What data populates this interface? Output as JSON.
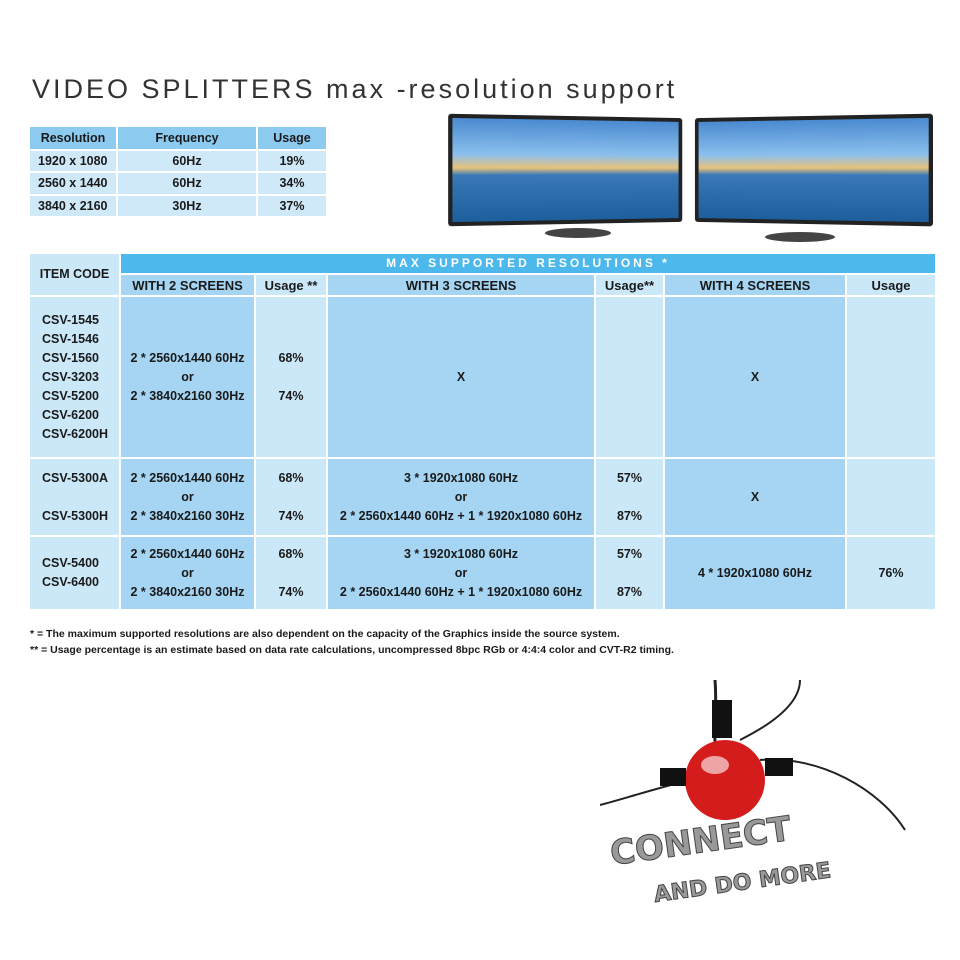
{
  "title": "VIDEO SPLITTERS  max -resolution support",
  "summary_table": {
    "headers": [
      "Resolution",
      "Frequency",
      "Usage"
    ],
    "rows": [
      [
        "1920 x 1080",
        "60Hz",
        "19%"
      ],
      [
        "2560 x 1440",
        "60Hz",
        "34%"
      ],
      [
        "3840 x 2160",
        "30Hz",
        "37%"
      ]
    ]
  },
  "main_table": {
    "item_code_header": "ITEM CODE",
    "group_header": "MAX SUPPORTED RESOLUTIONS *",
    "column_headers": [
      "WITH 2 SCREENS",
      "Usage **",
      "WITH 3 SCREENS",
      "Usage**",
      "WITH 4 SCREENS",
      "Usage"
    ],
    "rows": [
      {
        "codes": "CSV-1545\nCSV-1546\nCSV-1560\nCSV-3203\nCSV-5200\nCSV-6200\nCSV-6200H",
        "two": "2 * 2560x1440 60Hz\nor\n2 * 3840x2160 30Hz",
        "two_usage": "68%\n\n74%",
        "three": "X",
        "three_usage": "",
        "four": "X",
        "four_usage": ""
      },
      {
        "codes": "CSV-5300A\n\nCSV-5300H",
        "two": "2 * 2560x1440 60Hz\nor\n2 * 3840x2160 30Hz",
        "two_usage": "68%\n\n74%",
        "three": "3 * 1920x1080 60Hz\nor\n2 * 2560x1440 60Hz + 1 * 1920x1080 60Hz",
        "three_usage": "57%\n\n87%",
        "four": "X",
        "four_usage": ""
      },
      {
        "codes": "CSV-5400\nCSV-6400",
        "two": "2 * 2560x1440 60Hz\nor\n2 * 3840x2160 30Hz",
        "two_usage": "68%\n\n74%",
        "three": "3 * 1920x1080 60Hz\nor\n2 * 2560x1440 60Hz + 1 * 1920x1080 60Hz",
        "three_usage": "57%\n\n87%",
        "four": "4 * 1920x1080 60Hz",
        "four_usage": "76%"
      }
    ]
  },
  "footnotes": [
    "*   = The maximum supported resolutions are also dependent on the capacity of the Graphics inside the source system.",
    "** = Usage percentage is an estimate based on data rate calculations, uncompressed 8bpc RGb or 4:4:4 color and CVT-R2 timing."
  ],
  "logo": {
    "line1": "CONNECT",
    "line2": "AND DO MORE"
  },
  "colors": {
    "header_blue": "#4db8ec",
    "mid_blue": "#a5d5f3",
    "light_blue": "#cbe8f9"
  }
}
